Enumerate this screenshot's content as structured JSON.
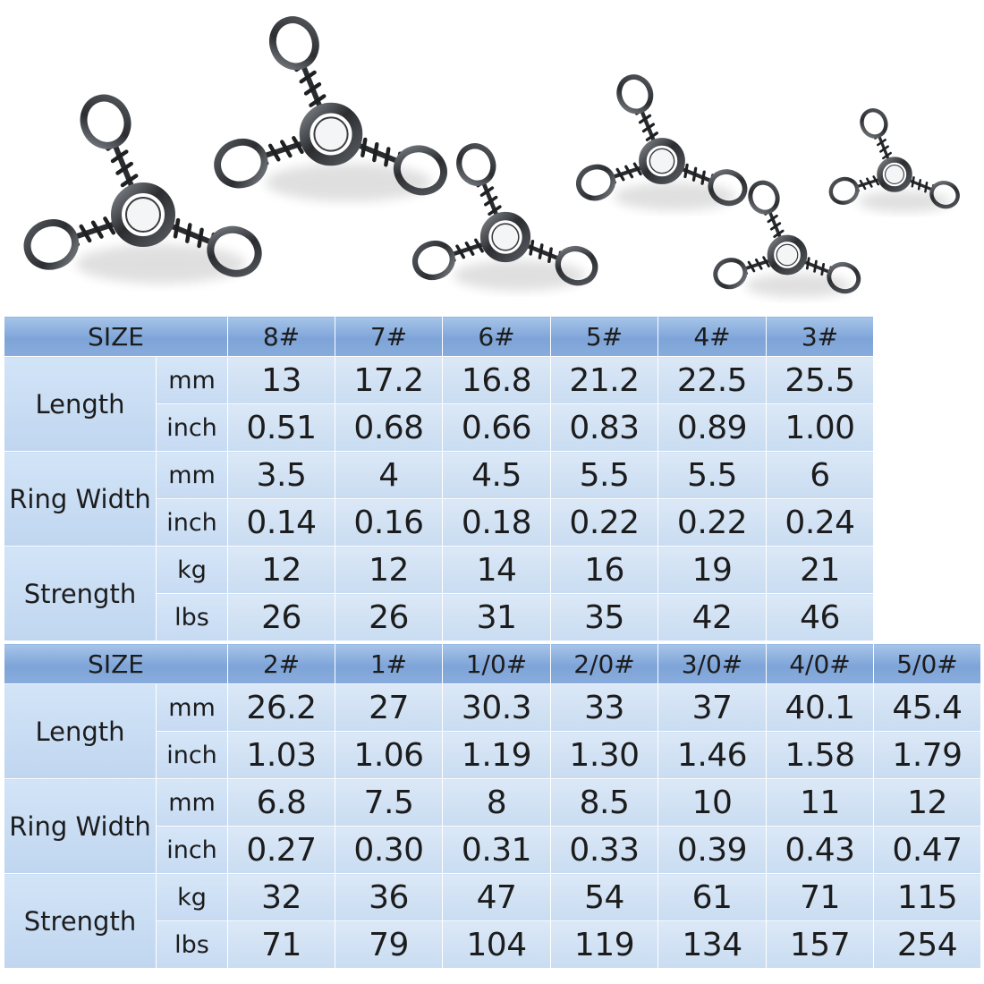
{
  "tables": [
    {
      "header_label": "SIZE",
      "sizes": [
        "8#",
        "7#",
        "6#",
        "5#",
        "4#",
        "3#"
      ],
      "groups": [
        {
          "name": "Length",
          "rows": [
            {
              "unit": "mm",
              "values": [
                "13",
                "17.2",
                "16.8",
                "21.2",
                "22.5",
                "25.5"
              ]
            },
            {
              "unit": "inch",
              "values": [
                "0.51",
                "0.68",
                "0.66",
                "0.83",
                "0.89",
                "1.00"
              ]
            }
          ]
        },
        {
          "name": "Ring Width",
          "rows": [
            {
              "unit": "mm",
              "values": [
                "3.5",
                "4",
                "4.5",
                "5.5",
                "5.5",
                "6"
              ]
            },
            {
              "unit": "inch",
              "values": [
                "0.14",
                "0.16",
                "0.18",
                "0.22",
                "0.22",
                "0.24"
              ]
            }
          ]
        },
        {
          "name": "Strength",
          "rows": [
            {
              "unit": "kg",
              "values": [
                "12",
                "12",
                "14",
                "16",
                "19",
                "21"
              ]
            },
            {
              "unit": "lbs",
              "values": [
                "26",
                "26",
                "31",
                "35",
                "42",
                "46"
              ]
            }
          ]
        }
      ]
    },
    {
      "header_label": "SIZE",
      "sizes": [
        "2#",
        "1#",
        "1/0#",
        "2/0#",
        "3/0#",
        "4/0#",
        "5/0#"
      ],
      "groups": [
        {
          "name": "Length",
          "rows": [
            {
              "unit": "mm",
              "values": [
                "26.2",
                "27",
                "30.3",
                "33",
                "37",
                "40.1",
                "45.4"
              ]
            },
            {
              "unit": "inch",
              "values": [
                "1.03",
                "1.06",
                "1.19",
                "1.30",
                "1.46",
                "1.58",
                "1.79"
              ]
            }
          ]
        },
        {
          "name": "Ring Width",
          "rows": [
            {
              "unit": "mm",
              "values": [
                "6.8",
                "7.5",
                "8",
                "8.5",
                "10",
                "11",
                "12"
              ]
            },
            {
              "unit": "inch",
              "values": [
                "0.27",
                "0.30",
                "0.31",
                "0.33",
                "0.39",
                "0.43",
                "0.47"
              ]
            }
          ]
        },
        {
          "name": "Strength",
          "rows": [
            {
              "unit": "kg",
              "values": [
                "32",
                "36",
                "47",
                "54",
                "61",
                "71",
                "115"
              ]
            },
            {
              "unit": "lbs",
              "values": [
                "71",
                "79",
                "104",
                "119",
                "134",
                "157",
                "254"
              ]
            }
          ]
        }
      ]
    }
  ],
  "colors": {
    "header_fill": "#8eb0de",
    "cell_fill": "#d2e2f5",
    "grid_line": "#ffffff",
    "swivel_metal": "#2e3033"
  },
  "product_image": {
    "icon": "three-way-swivel-icon",
    "count": 6
  }
}
